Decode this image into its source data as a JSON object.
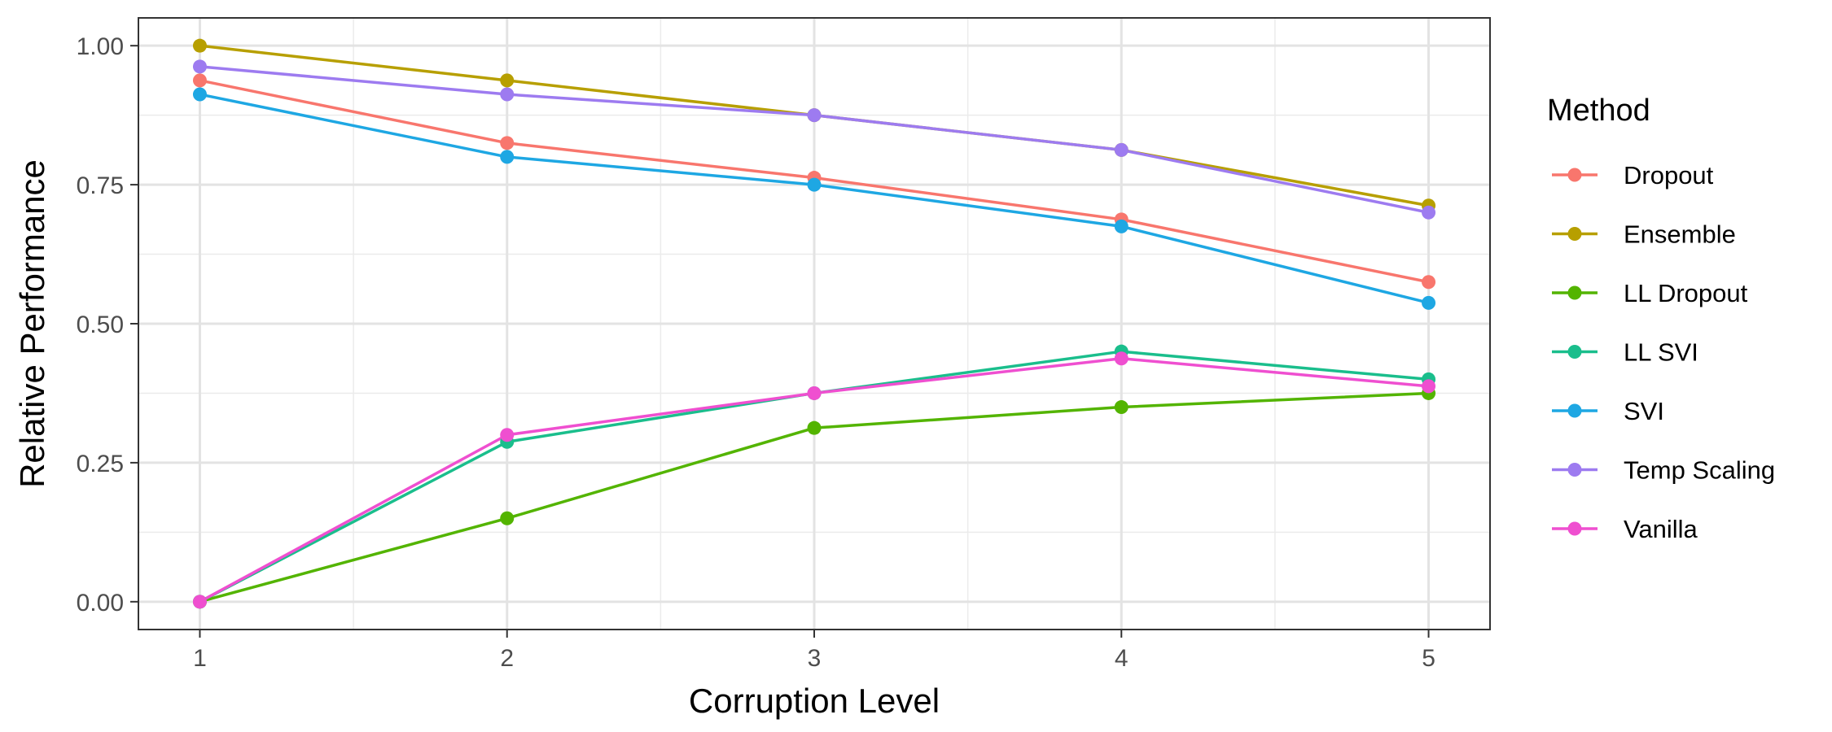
{
  "chart_data": {
    "type": "line",
    "title": "",
    "xlabel": "Corruption Level",
    "ylabel": "Relative Performance",
    "x": [
      1,
      2,
      3,
      4,
      5
    ],
    "x_ticks": [
      "1",
      "2",
      "3",
      "4",
      "5"
    ],
    "xlim": [
      0.8,
      5.2
    ],
    "y_ticks": [
      "0.00",
      "0.25",
      "0.50",
      "0.75",
      "1.00"
    ],
    "ylim": [
      -0.05,
      1.05
    ],
    "grid": true,
    "legend": {
      "title": "Method",
      "placement": "right"
    },
    "series": [
      {
        "name": "Dropout",
        "color": "#F8766D",
        "values": [
          0.9375,
          0.825,
          0.7625,
          0.6875,
          0.575
        ]
      },
      {
        "name": "Ensemble",
        "color": "#B79F00",
        "values": [
          1.0,
          0.9375,
          0.875,
          0.8125,
          0.7125
        ]
      },
      {
        "name": "LL Dropout",
        "color": "#53B400",
        "values": [
          0.0,
          0.15,
          0.3125,
          0.35,
          0.375
        ]
      },
      {
        "name": "LL SVI",
        "color": "#1ABE8C",
        "values": [
          0.0,
          0.2875,
          0.375,
          0.45,
          0.4
        ]
      },
      {
        "name": "SVI",
        "color": "#1EA7E3",
        "values": [
          0.9125,
          0.8,
          0.75,
          0.675,
          0.5375
        ]
      },
      {
        "name": "Temp Scaling",
        "color": "#9D7BF0",
        "values": [
          0.9625,
          0.9125,
          0.875,
          0.8125,
          0.7
        ]
      },
      {
        "name": "Vanilla",
        "color": "#EF4FD0",
        "values": [
          0.0,
          0.3,
          0.375,
          0.4375,
          0.3875
        ]
      }
    ]
  }
}
